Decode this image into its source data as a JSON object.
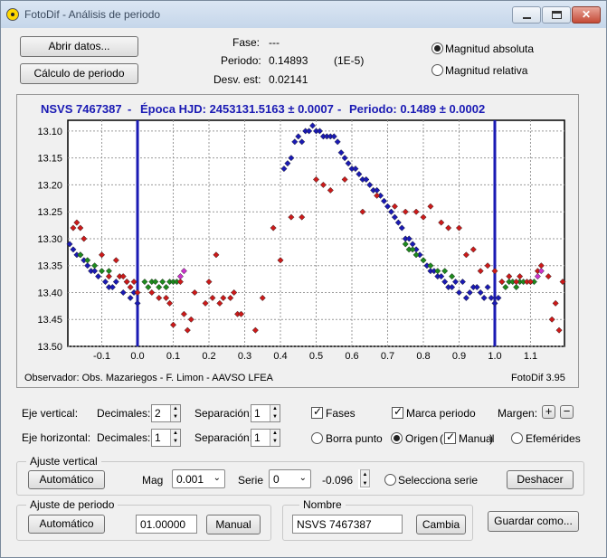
{
  "window": {
    "title": "FotoDif - Análisis de periodo"
  },
  "buttons": {
    "open_data": "Abrir datos...",
    "calc_period": "Cálculo de periodo"
  },
  "stats": {
    "phase_label": "Fase:",
    "phase_value": "---",
    "period_label": "Periodo:",
    "period_value": "0.14893",
    "period_error": "(1E-5)",
    "std_label": "Desv. est:",
    "std_value": "0.02141"
  },
  "magnitude_mode": {
    "absolute": "Magnitud absoluta",
    "relative": "Magnitud relativa",
    "selected": "absolute"
  },
  "plot": {
    "header": {
      "star": "NSVS 7467387",
      "sep1": "-",
      "epoch": "Época HJD: 2453131.5163 ± 0.0007",
      "sep2": "-",
      "period": "Periodo: 0.1489 ± 0.0002"
    },
    "footer_left": "Observador: Obs. Mazariegos - F. Limon - AAVSO LFEA",
    "footer_right": "FotoDif 3.95"
  },
  "chart_data": {
    "type": "scatter",
    "title": "NSVS 7467387  -  Época HJD: 2453131.5163 ± 0.0007  -  Periodo: 0.1489 ± 0.0002",
    "xlim": [
      -0.195,
      1.195
    ],
    "ylim": [
      13.5,
      13.08
    ],
    "xticks": [
      "-0.1",
      "0.0",
      "0.1",
      "0.2",
      "0.3",
      "0.4",
      "0.5",
      "0.6",
      "0.7",
      "0.8",
      "0.9",
      "1.0",
      "1.1"
    ],
    "yticks": [
      "13.10",
      "13.15",
      "13.20",
      "13.25",
      "13.30",
      "13.35",
      "13.40",
      "13.45",
      "13.50"
    ],
    "period_markers": [
      0.0,
      1.0
    ],
    "grid": true,
    "series": [
      {
        "color": "#1a1ab4",
        "points": [
          [
            -0.19,
            13.31
          ],
          [
            -0.18,
            13.32
          ],
          [
            -0.17,
            13.33
          ],
          [
            -0.16,
            13.33
          ],
          [
            -0.15,
            13.34
          ],
          [
            -0.14,
            13.35
          ],
          [
            -0.13,
            13.36
          ],
          [
            -0.12,
            13.36
          ],
          [
            -0.11,
            13.37
          ],
          [
            -0.09,
            13.38
          ],
          [
            -0.08,
            13.39
          ],
          [
            -0.07,
            13.39
          ],
          [
            -0.06,
            13.38
          ],
          [
            -0.04,
            13.4
          ],
          [
            -0.03,
            13.38
          ],
          [
            -0.02,
            13.41
          ],
          [
            -0.01,
            13.4
          ],
          [
            0.0,
            13.42
          ],
          [
            0.41,
            13.17
          ],
          [
            0.42,
            13.16
          ],
          [
            0.43,
            13.15
          ],
          [
            0.44,
            13.12
          ],
          [
            0.45,
            13.11
          ],
          [
            0.46,
            13.12
          ],
          [
            0.47,
            13.1
          ],
          [
            0.48,
            13.1
          ],
          [
            0.49,
            13.09
          ],
          [
            0.5,
            13.1
          ],
          [
            0.51,
            13.1
          ],
          [
            0.52,
            13.11
          ],
          [
            0.53,
            13.11
          ],
          [
            0.54,
            13.11
          ],
          [
            0.55,
            13.11
          ],
          [
            0.56,
            13.12
          ],
          [
            0.57,
            13.14
          ],
          [
            0.58,
            13.15
          ],
          [
            0.59,
            13.16
          ],
          [
            0.6,
            13.17
          ],
          [
            0.61,
            13.17
          ],
          [
            0.62,
            13.18
          ],
          [
            0.63,
            13.19
          ],
          [
            0.64,
            13.19
          ],
          [
            0.65,
            13.2
          ],
          [
            0.66,
            13.21
          ],
          [
            0.67,
            13.21
          ],
          [
            0.68,
            13.22
          ],
          [
            0.69,
            13.23
          ],
          [
            0.7,
            13.24
          ],
          [
            0.71,
            13.25
          ],
          [
            0.72,
            13.26
          ],
          [
            0.73,
            13.27
          ],
          [
            0.74,
            13.28
          ],
          [
            0.75,
            13.3
          ],
          [
            0.76,
            13.3
          ],
          [
            0.77,
            13.31
          ],
          [
            0.78,
            13.32
          ],
          [
            0.79,
            13.33
          ],
          [
            0.8,
            13.34
          ],
          [
            0.81,
            13.35
          ],
          [
            0.82,
            13.36
          ],
          [
            0.83,
            13.36
          ],
          [
            0.84,
            13.37
          ],
          [
            0.85,
            13.37
          ],
          [
            0.86,
            13.38
          ],
          [
            0.87,
            13.39
          ],
          [
            0.88,
            13.39
          ],
          [
            0.89,
            13.38
          ],
          [
            0.9,
            13.4
          ],
          [
            0.91,
            13.38
          ],
          [
            0.92,
            13.41
          ],
          [
            0.93,
            13.4
          ],
          [
            0.94,
            13.39
          ],
          [
            0.95,
            13.39
          ],
          [
            0.96,
            13.4
          ],
          [
            0.97,
            13.41
          ],
          [
            0.98,
            13.39
          ],
          [
            0.99,
            13.41
          ],
          [
            1.0,
            13.42
          ],
          [
            1.01,
            13.41
          ]
        ]
      },
      {
        "color": "#1d8a1d",
        "points": [
          [
            -0.16,
            13.33
          ],
          [
            -0.14,
            13.34
          ],
          [
            -0.12,
            13.35
          ],
          [
            -0.1,
            13.36
          ],
          [
            -0.08,
            13.36
          ],
          [
            0.02,
            13.38
          ],
          [
            0.03,
            13.39
          ],
          [
            0.04,
            13.38
          ],
          [
            0.05,
            13.38
          ],
          [
            0.06,
            13.39
          ],
          [
            0.07,
            13.38
          ],
          [
            0.08,
            13.39
          ],
          [
            0.09,
            13.38
          ],
          [
            0.1,
            13.38
          ],
          [
            0.11,
            13.38
          ],
          [
            0.75,
            13.31
          ],
          [
            0.76,
            13.32
          ],
          [
            0.77,
            13.32
          ],
          [
            0.78,
            13.33
          ],
          [
            0.8,
            13.34
          ],
          [
            0.82,
            13.35
          ],
          [
            0.84,
            13.36
          ],
          [
            0.86,
            13.36
          ],
          [
            0.88,
            13.37
          ],
          [
            1.02,
            13.38
          ],
          [
            1.03,
            13.39
          ],
          [
            1.04,
            13.38
          ],
          [
            1.05,
            13.38
          ],
          [
            1.06,
            13.39
          ],
          [
            1.07,
            13.38
          ],
          [
            1.08,
            13.38
          ],
          [
            1.1,
            13.38
          ],
          [
            1.11,
            13.38
          ]
        ]
      },
      {
        "color": "#cc1a1a",
        "points": [
          [
            -0.18,
            13.28
          ],
          [
            -0.17,
            13.27
          ],
          [
            -0.16,
            13.28
          ],
          [
            -0.15,
            13.3
          ],
          [
            -0.1,
            13.33
          ],
          [
            -0.08,
            13.37
          ],
          [
            -0.06,
            13.34
          ],
          [
            -0.05,
            13.37
          ],
          [
            -0.04,
            13.37
          ],
          [
            -0.03,
            13.38
          ],
          [
            -0.02,
            13.39
          ],
          [
            -0.01,
            13.38
          ],
          [
            0.0,
            13.4
          ],
          [
            0.04,
            13.4
          ],
          [
            0.06,
            13.41
          ],
          [
            0.08,
            13.41
          ],
          [
            0.09,
            13.42
          ],
          [
            0.1,
            13.46
          ],
          [
            0.12,
            13.38
          ],
          [
            0.13,
            13.44
          ],
          [
            0.14,
            13.47
          ],
          [
            0.15,
            13.45
          ],
          [
            0.16,
            13.4
          ],
          [
            0.19,
            13.42
          ],
          [
            0.2,
            13.38
          ],
          [
            0.21,
            13.41
          ],
          [
            0.22,
            13.33
          ],
          [
            0.23,
            13.42
          ],
          [
            0.24,
            13.41
          ],
          [
            0.26,
            13.41
          ],
          [
            0.27,
            13.4
          ],
          [
            0.28,
            13.44
          ],
          [
            0.29,
            13.44
          ],
          [
            0.33,
            13.47
          ],
          [
            0.35,
            13.41
          ],
          [
            0.38,
            13.28
          ],
          [
            0.4,
            13.34
          ],
          [
            0.43,
            13.26
          ],
          [
            0.46,
            13.26
          ],
          [
            0.5,
            13.19
          ],
          [
            0.52,
            13.2
          ],
          [
            0.54,
            13.21
          ],
          [
            0.58,
            13.19
          ],
          [
            0.63,
            13.25
          ],
          [
            0.67,
            13.22
          ],
          [
            0.72,
            13.24
          ],
          [
            0.75,
            13.25
          ],
          [
            0.78,
            13.25
          ],
          [
            0.8,
            13.26
          ],
          [
            0.82,
            13.24
          ],
          [
            0.85,
            13.27
          ],
          [
            0.87,
            13.28
          ],
          [
            0.9,
            13.28
          ],
          [
            0.92,
            13.33
          ],
          [
            0.94,
            13.32
          ],
          [
            0.96,
            13.36
          ],
          [
            0.98,
            13.35
          ],
          [
            1.0,
            13.36
          ],
          [
            1.02,
            13.38
          ],
          [
            1.04,
            13.37
          ],
          [
            1.06,
            13.38
          ],
          [
            1.07,
            13.37
          ],
          [
            1.09,
            13.38
          ],
          [
            1.1,
            13.38
          ],
          [
            1.12,
            13.36
          ],
          [
            1.13,
            13.35
          ],
          [
            1.15,
            13.37
          ],
          [
            1.16,
            13.45
          ],
          [
            1.17,
            13.42
          ],
          [
            1.18,
            13.47
          ],
          [
            1.19,
            13.38
          ]
        ]
      },
      {
        "color": "#cc33cc",
        "points": [
          [
            0.12,
            13.37
          ],
          [
            0.13,
            13.36
          ],
          [
            1.12,
            13.37
          ],
          [
            1.13,
            13.36
          ]
        ]
      }
    ]
  },
  "axes_controls": {
    "vertical_label": "Eje vertical:",
    "horizontal_label": "Eje horizontal:",
    "decimals_label": "Decimales:",
    "separation_label": "Separación:",
    "v_decimals": "2",
    "v_separation": "1",
    "h_decimals": "1",
    "h_separation": "1",
    "phases": "Fases",
    "period_mark": "Marca periodo",
    "margin": "Margen:",
    "remove_point": "Borra punto",
    "origin": "Origen",
    "manual": "Manual",
    "ephemerides": "Efemérides"
  },
  "vertical_fit": {
    "group_title": "Ajuste vertical",
    "auto": "Automático",
    "mag_label": "Mag",
    "mag_value": "0.001",
    "series_label": "Serie",
    "series_value": "0",
    "offset_value": "-0.096",
    "select_series": "Selecciona serie",
    "undo": "Deshacer"
  },
  "period_fit": {
    "group_title": "Ajuste de periodo",
    "auto": "Automático",
    "value": "01.00000",
    "manual": "Manual"
  },
  "name_group": {
    "group_title": "Nombre",
    "value": "NSVS 7467387",
    "change": "Cambia"
  },
  "save_as": "Guardar como..."
}
